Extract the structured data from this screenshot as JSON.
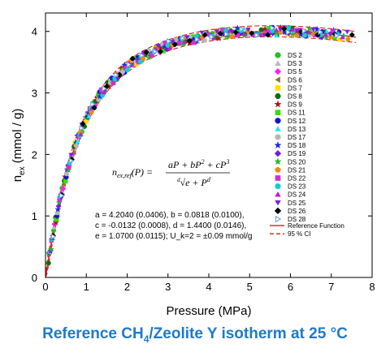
{
  "caption": {
    "prefix": "Reference CH",
    "subscript": "4",
    "suffix": "/Zeolite Y isotherm at 25 °C"
  },
  "equation": {
    "lhs": "n_ex,ref(P) =",
    "numerator": "aP + bP² + cP³",
    "denominator": "√(e + P^d) (d-th root)"
  },
  "parameters": [
    "a = 4.2040 (0.0406), b = 0.0818 (0.0100),",
    "c = -0.0132 (0.0008), d = 1.4400 (0.0146),",
    "e = 1.0700 (0.0115); U_k=2 = ±0.09 mmol/g"
  ],
  "colors": {
    "reference_line": "#e01818",
    "ci_line": "#e01818",
    "caption": "#1f7ac8"
  },
  "chart_data": {
    "type": "scatter",
    "xlabel": "Pressure (MPa)",
    "ylabel": "n_ex (mmol / g)",
    "xlim": [
      0,
      8
    ],
    "ylim": [
      0,
      4.3
    ],
    "xticks": [
      0,
      1,
      2,
      3,
      4,
      5,
      6,
      7,
      8
    ],
    "yticks": [
      0,
      1,
      2,
      3,
      4
    ],
    "grid": false,
    "legend_position": "right",
    "reference_function": {
      "a": 4.204,
      "b": 0.0818,
      "c": -0.0132,
      "d": 1.44,
      "e": 1.07
    },
    "ci_half_width": 0.09,
    "series": [
      {
        "name": "DS 2",
        "marker": "circle",
        "color": "#22c022"
      },
      {
        "name": "DS 3",
        "marker": "triangle",
        "color": "#b8b8b8"
      },
      {
        "name": "DS 5",
        "marker": "diamond",
        "color": "#ff20ff"
      },
      {
        "name": "DS 6",
        "marker": "triangle-left",
        "color": "#8a7a20"
      },
      {
        "name": "DS 7",
        "marker": "square",
        "color": "#ffe000"
      },
      {
        "name": "DS 8",
        "marker": "hexagon",
        "color": "#0f6a18"
      },
      {
        "name": "DS 9",
        "marker": "star",
        "color": "#b01818"
      },
      {
        "name": "DS 11",
        "marker": "square",
        "color": "#30e010"
      },
      {
        "name": "DS 12",
        "marker": "circle",
        "color": "#1414d0"
      },
      {
        "name": "DS 13",
        "marker": "triangle",
        "color": "#20e8e8"
      },
      {
        "name": "DS 17",
        "marker": "circle",
        "color": "#b8b8b8"
      },
      {
        "name": "DS 18",
        "marker": "star",
        "color": "#2028e0"
      },
      {
        "name": "DS 19",
        "marker": "diamond",
        "color": "#7020d8"
      },
      {
        "name": "DS 20",
        "marker": "star",
        "color": "#30b030"
      },
      {
        "name": "DS 21",
        "marker": "pentagon",
        "color": "#f08a10"
      },
      {
        "name": "DS 22",
        "marker": "square",
        "color": "#d030d0"
      },
      {
        "name": "DS 23",
        "marker": "circle",
        "color": "#10d0d0"
      },
      {
        "name": "DS 24",
        "marker": "triangle",
        "color": "#c020c0"
      },
      {
        "name": "DS 25",
        "marker": "triangle-down",
        "color": "#7820e0"
      },
      {
        "name": "DS 26",
        "marker": "diamond",
        "color": "#000000"
      },
      {
        "name": "DS 28",
        "marker": "triangle-right",
        "color": "#70a8e8"
      }
    ],
    "lines": [
      {
        "name": "Reference Function",
        "style": "solid",
        "color": "#e01818"
      },
      {
        "name": "95 % CI",
        "style": "dashed",
        "color": "#e01818"
      }
    ]
  }
}
